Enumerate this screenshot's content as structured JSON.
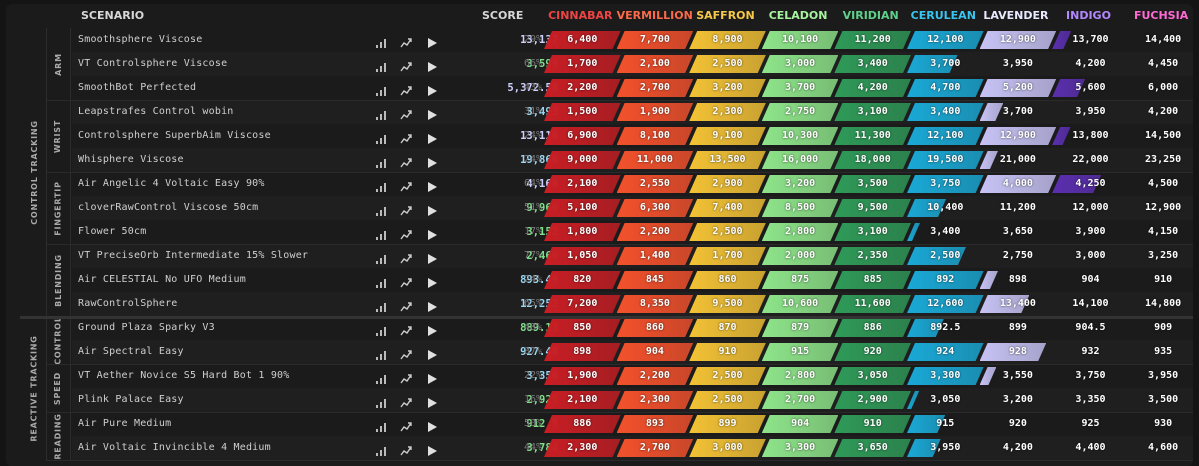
{
  "header": {
    "scenario": "SCENARIO",
    "score": "SCORE",
    "ranks": [
      {
        "label": "CINNABAR",
        "color": "#ef4444",
        "fill": "#c81e24"
      },
      {
        "label": "VERMILLION",
        "color": "#fb6a4a",
        "fill": "#f4512c"
      },
      {
        "label": "SAFFRON",
        "color": "#f7c948",
        "fill": "#f3c235"
      },
      {
        "label": "CELADON",
        "color": "#a7f3a0",
        "fill": "#8ee58a"
      },
      {
        "label": "VIRIDIAN",
        "color": "#5fd08a",
        "fill": "#2f9a58"
      },
      {
        "label": "CERULEAN",
        "color": "#38c5f0",
        "fill": "#1aa9d6"
      },
      {
        "label": "LAVENDER",
        "color": "#e8e8ff",
        "fill": "#c7c3f5"
      },
      {
        "label": "INDIGO",
        "color": "#b388ff",
        "fill": "#5b2fb0"
      },
      {
        "label": "FUCHSIA",
        "color": "#ff6ad5",
        "fill": "#c2319c"
      }
    ]
  },
  "categories": [
    {
      "label": "CONTROL TRACKING",
      "subcategories": [
        {
          "label": "ARM",
          "rows": [
            0,
            1,
            2
          ]
        },
        {
          "label": "WRIST",
          "rows": [
            3,
            4,
            5
          ]
        },
        {
          "label": "FINGERTIP",
          "rows": [
            6,
            7,
            8
          ]
        },
        {
          "label": "BLENDING",
          "rows": [
            9,
            10,
            11
          ]
        }
      ]
    },
    {
      "label": "REACTIVE TRACKING",
      "subcategories": [
        {
          "label": "CONTROL",
          "rows": [
            12,
            13
          ]
        },
        {
          "label": "SPEED",
          "rows": [
            14,
            15
          ]
        },
        {
          "label": "READING",
          "rows": [
            16,
            17
          ]
        }
      ]
    }
  ],
  "rows": [
    {
      "name": "Smoothsphere Viscose",
      "score": "13,137",
      "score_color": "#d0d0ff",
      "pct": "29%",
      "filled": 7.25,
      "thresholds": [
        "6,400",
        "7,700",
        "8,900",
        "10,100",
        "11,200",
        "12,100",
        "12,900",
        "13,700",
        "14,400"
      ]
    },
    {
      "name": "VT Controlsphere Viscose",
      "score": "3,599",
      "score_color": "#7fe08a",
      "pct": "66%",
      "filled": 5.66,
      "thresholds": [
        "1,700",
        "2,100",
        "2,500",
        "3,000",
        "3,400",
        "3,700",
        "3,950",
        "4,200",
        "4,450"
      ]
    },
    {
      "name": "SmoothBot Perfected",
      "score": "5,372.58",
      "score_color": "#d0d0ff",
      "pct": "43%",
      "filled": 7.43,
      "thresholds": [
        "2,200",
        "2,700",
        "3,200",
        "3,700",
        "4,200",
        "4,700",
        "5,200",
        "5,600",
        "6,000"
      ]
    },
    {
      "name": "Leapstrafes Control wobin",
      "score": "3,493",
      "score_color": "#9ad8f5",
      "pct": "31%",
      "filled": 6.31,
      "thresholds": [
        "1,500",
        "1,900",
        "2,300",
        "2,750",
        "3,100",
        "3,400",
        "3,700",
        "3,950",
        "4,200"
      ]
    },
    {
      "name": "Controlsphere SuperbAim Viscose",
      "score": "13,116",
      "score_color": "#d0d0ff",
      "pct": "24%",
      "filled": 7.24,
      "thresholds": [
        "6,900",
        "8,100",
        "9,100",
        "10,300",
        "11,300",
        "12,100",
        "12,900",
        "13,800",
        "14,500"
      ]
    },
    {
      "name": "Whisphere Viscose",
      "score": "19,860",
      "score_color": "#9ad8f5",
      "pct": "24%",
      "filled": 6.24,
      "thresholds": [
        "9,000",
        "11,000",
        "13,500",
        "16,000",
        "18,000",
        "19,500",
        "21,000",
        "22,000",
        "23,250"
      ]
    },
    {
      "name": "Air Angelic 4 Voltaic Easy 90%",
      "score": "4,160",
      "score_color": "#d0d0ff",
      "pct": "64%",
      "filled": 7.64,
      "thresholds": [
        "2,100",
        "2,550",
        "2,900",
        "3,200",
        "3,500",
        "3,750",
        "4,000",
        "4,250",
        "4,500"
      ]
    },
    {
      "name": "cloverRawControl Viscose 50cm",
      "score": "9,966",
      "score_color": "#7fe08a",
      "pct": "51%",
      "filled": 5.51,
      "thresholds": [
        "5,100",
        "6,300",
        "7,400",
        "8,500",
        "9,500",
        "10,400",
        "11,200",
        "12,000",
        "12,900"
      ]
    },
    {
      "name": "Flower 50cm",
      "score": "3,152",
      "score_color": "#7fe08a",
      "pct": "17%",
      "filled": 5.17,
      "thresholds": [
        "1,800",
        "2,200",
        "2,500",
        "2,800",
        "3,100",
        "3,400",
        "3,650",
        "3,900",
        "4,150"
      ]
    },
    {
      "name": "VT PreciseOrb Intermediate 15% Slower",
      "score": "2,466",
      "score_color": "#7fe08a",
      "pct": "77%",
      "filled": 5.77,
      "thresholds": [
        "1,050",
        "1,400",
        "1,700",
        "2,000",
        "2,350",
        "2,500",
        "2,750",
        "3,000",
        "3,250"
      ]
    },
    {
      "name": "Air CELESTIAL No UFO Medium",
      "score": "893.49",
      "score_color": "#9ad8f5",
      "pct": "24%",
      "filled": 6.24,
      "thresholds": [
        "820",
        "845",
        "860",
        "875",
        "885",
        "892",
        "898",
        "904",
        "910"
      ]
    },
    {
      "name": "RawControlSphere",
      "score": "12,252",
      "score_color": "#9ad8f5",
      "pct": "65%",
      "filled": 6.65,
      "thresholds": [
        "7,200",
        "8,350",
        "9,500",
        "10,600",
        "11,600",
        "12,600",
        "13,400",
        "14,100",
        "14,800"
      ]
    },
    {
      "name": "Ground Plaza Sparky V3",
      "score": "889.13",
      "score_color": "#7fe08a",
      "pct": "48%",
      "filled": 5.48,
      "thresholds": [
        "850",
        "860",
        "870",
        "879",
        "886",
        "892.5",
        "899",
        "904.5",
        "909"
      ]
    },
    {
      "name": "Air Spectral Easy",
      "score": "927.48",
      "score_color": "#9ad8f5",
      "pct": "87%",
      "filled": 6.87,
      "thresholds": [
        "898",
        "904",
        "910",
        "915",
        "920",
        "924",
        "928",
        "932",
        "935"
      ]
    },
    {
      "name": "VT Aether Novice S5 Hard Bot 1 90%",
      "score": "3,356",
      "score_color": "#9ad8f5",
      "pct": "22%",
      "filled": 6.22,
      "thresholds": [
        "1,900",
        "2,200",
        "2,500",
        "2,800",
        "3,050",
        "3,300",
        "3,550",
        "3,750",
        "3,950"
      ]
    },
    {
      "name": "Plink Palace Easy",
      "score": "2,925",
      "score_color": "#7fe08a",
      "pct": "16%",
      "filled": 5.16,
      "thresholds": [
        "2,100",
        "2,300",
        "2,500",
        "2,700",
        "2,900",
        "3,050",
        "3,200",
        "3,350",
        "3,500"
      ]
    },
    {
      "name": "Air Pure Medium",
      "score": "912.5",
      "score_color": "#7fe08a",
      "pct": "50%",
      "filled": 5.5,
      "thresholds": [
        "886",
        "893",
        "899",
        "904",
        "910",
        "915",
        "920",
        "925",
        "930"
      ]
    },
    {
      "name": "Air Voltaic Invincible 4 Medium",
      "score": "3,784",
      "score_color": "#7fe08a",
      "pct": "44%",
      "filled": 5.44,
      "thresholds": [
        "2,300",
        "2,700",
        "3,000",
        "3,300",
        "3,650",
        "3,950",
        "4,200",
        "4,400",
        "4,600"
      ]
    }
  ],
  "icons": {
    "stats": "bar-chart-icon",
    "graph": "trend-line-icon",
    "play": "play-icon"
  }
}
